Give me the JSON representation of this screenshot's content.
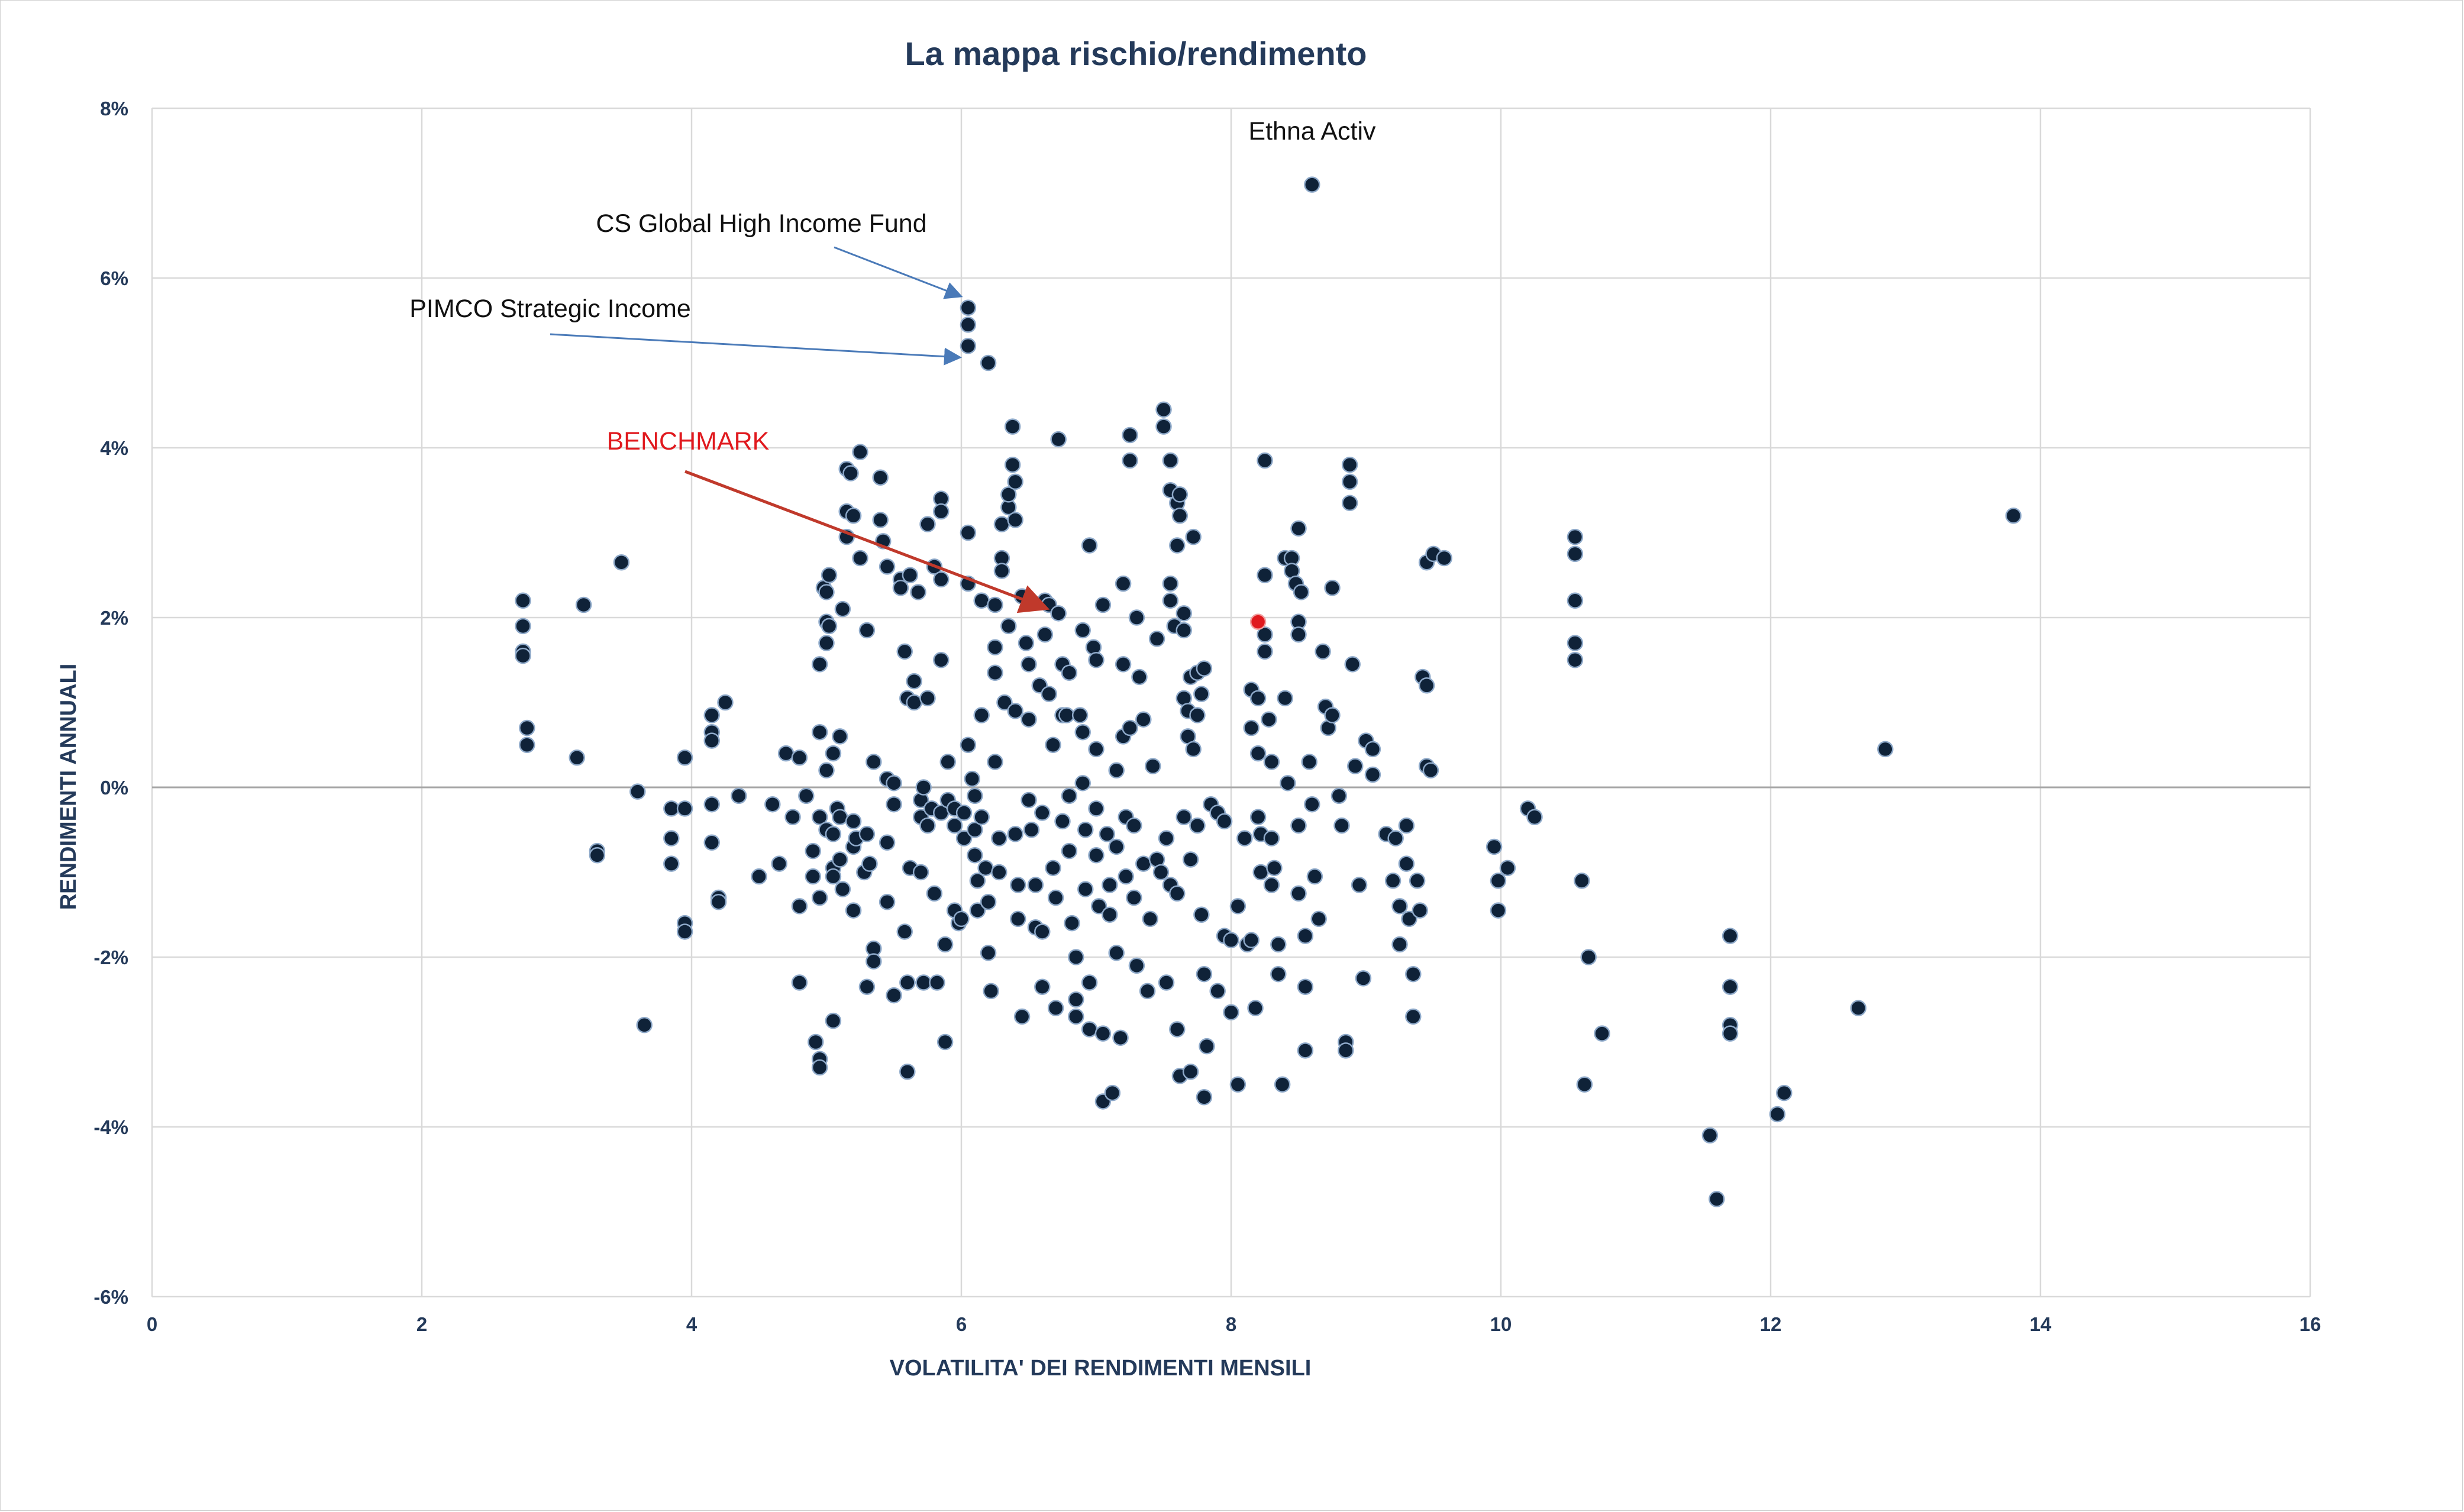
{
  "chart_data": {
    "type": "scatter",
    "title": "La mappa rischio/rendimento",
    "xlabel": "VOLATILITA' DEI RENDIMENTI MENSILI",
    "ylabel": "RENDIMENTI ANNUALI",
    "xlim": [
      0,
      16
    ],
    "ylim": [
      -6,
      8
    ],
    "x_ticks": [
      "0",
      "2",
      "4",
      "6",
      "8",
      "10",
      "12",
      "14",
      "16"
    ],
    "y_ticks": [
      "8%",
      "6%",
      "4%",
      "2%",
      "0%",
      "-2%",
      "-4%",
      "-6%"
    ],
    "grid": true,
    "colors": {
      "points": "#0f2238",
      "point_outline": "#8ea9c9",
      "benchmark": "#e0191e",
      "text": "#243a5a"
    },
    "benchmark": {
      "label": "BENCHMARK",
      "x": 8.2,
      "y": 1.95
    },
    "annotations": [
      {
        "label": "Ethna Activ",
        "x": 8.6,
        "y": 7.1
      },
      {
        "label": "CS Global High Income Fund",
        "x": 6.05,
        "y": 5.65
      },
      {
        "label": "PIMCO Strategic Income",
        "x": 6.05,
        "y": 5.0
      }
    ],
    "points": [
      [
        2.75,
        2.2
      ],
      [
        2.75,
        1.9
      ],
      [
        2.75,
        1.6
      ],
      [
        2.75,
        1.55
      ],
      [
        2.78,
        0.7
      ],
      [
        2.78,
        0.5
      ],
      [
        3.15,
        0.35
      ],
      [
        3.2,
        2.15
      ],
      [
        3.3,
        -0.75
      ],
      [
        3.3,
        -0.8
      ],
      [
        3.48,
        2.65
      ],
      [
        3.6,
        -0.05
      ],
      [
        3.65,
        -2.8
      ],
      [
        3.85,
        -0.25
      ],
      [
        3.85,
        -0.6
      ],
      [
        3.85,
        -0.9
      ],
      [
        3.95,
        0.35
      ],
      [
        3.95,
        -0.25
      ],
      [
        3.95,
        -1.6
      ],
      [
        3.95,
        -1.7
      ],
      [
        4.15,
        0.85
      ],
      [
        4.15,
        0.65
      ],
      [
        4.15,
        0.55
      ],
      [
        4.15,
        -0.2
      ],
      [
        4.15,
        -0.65
      ],
      [
        4.2,
        -1.3
      ],
      [
        4.2,
        -1.35
      ],
      [
        4.25,
        1.0
      ],
      [
        4.35,
        -0.1
      ],
      [
        4.5,
        -1.05
      ],
      [
        4.6,
        -0.2
      ],
      [
        4.65,
        -0.9
      ],
      [
        4.7,
        0.4
      ],
      [
        4.75,
        -0.35
      ],
      [
        4.8,
        0.35
      ],
      [
        4.8,
        -1.4
      ],
      [
        4.8,
        -2.3
      ],
      [
        4.85,
        -0.1
      ],
      [
        4.9,
        -0.75
      ],
      [
        4.9,
        -1.05
      ],
      [
        4.92,
        -3.0
      ],
      [
        4.95,
        -3.2
      ],
      [
        4.95,
        0.65
      ],
      [
        4.95,
        -0.35
      ],
      [
        4.95,
        -1.3
      ],
      [
        4.95,
        1.45
      ],
      [
        4.95,
        -3.3
      ],
      [
        4.98,
        2.35
      ],
      [
        5.0,
        2.3
      ],
      [
        5.0,
        1.95
      ],
      [
        5.0,
        1.7
      ],
      [
        5.0,
        0.2
      ],
      [
        5.0,
        -0.5
      ],
      [
        5.02,
        2.5
      ],
      [
        5.02,
        1.9
      ],
      [
        5.05,
        0.4
      ],
      [
        5.05,
        -0.55
      ],
      [
        5.05,
        -0.95
      ],
      [
        5.05,
        -1.05
      ],
      [
        5.05,
        -2.75
      ],
      [
        5.08,
        -0.25
      ],
      [
        5.1,
        0.6
      ],
      [
        5.1,
        -0.35
      ],
      [
        5.1,
        -0.85
      ],
      [
        5.12,
        -1.2
      ],
      [
        5.12,
        2.1
      ],
      [
        5.15,
        3.25
      ],
      [
        5.15,
        3.75
      ],
      [
        5.15,
        2.95
      ],
      [
        5.18,
        3.7
      ],
      [
        5.2,
        3.2
      ],
      [
        5.2,
        -0.4
      ],
      [
        5.2,
        -0.7
      ],
      [
        5.2,
        -1.45
      ],
      [
        5.22,
        -0.6
      ],
      [
        5.25,
        3.95
      ],
      [
        5.25,
        2.7
      ],
      [
        5.28,
        -1.0
      ],
      [
        5.3,
        1.85
      ],
      [
        5.3,
        -0.55
      ],
      [
        5.3,
        -2.35
      ],
      [
        5.32,
        -0.9
      ],
      [
        5.35,
        0.3
      ],
      [
        5.35,
        -1.9
      ],
      [
        5.35,
        -2.05
      ],
      [
        5.4,
        3.15
      ],
      [
        5.4,
        3.65
      ],
      [
        5.42,
        2.9
      ],
      [
        5.45,
        2.6
      ],
      [
        5.45,
        0.1
      ],
      [
        5.45,
        -0.65
      ],
      [
        5.45,
        -1.35
      ],
      [
        5.5,
        -2.45
      ],
      [
        5.5,
        0.05
      ],
      [
        5.5,
        -0.2
      ],
      [
        5.55,
        2.45
      ],
      [
        5.55,
        2.35
      ],
      [
        5.58,
        1.6
      ],
      [
        5.58,
        -1.7
      ],
      [
        5.6,
        -3.35
      ],
      [
        5.6,
        -2.3
      ],
      [
        5.6,
        1.05
      ],
      [
        5.62,
        2.5
      ],
      [
        5.62,
        -0.95
      ],
      [
        5.65,
        1.25
      ],
      [
        5.65,
        1.0
      ],
      [
        5.68,
        2.3
      ],
      [
        5.7,
        -0.35
      ],
      [
        5.7,
        -0.15
      ],
      [
        5.7,
        -1.0
      ],
      [
        5.72,
        0.0
      ],
      [
        5.72,
        -2.3
      ],
      [
        5.75,
        -0.45
      ],
      [
        5.75,
        3.1
      ],
      [
        5.75,
        1.05
      ],
      [
        5.78,
        -0.25
      ],
      [
        5.8,
        2.6
      ],
      [
        5.8,
        -1.25
      ],
      [
        5.82,
        -2.3
      ],
      [
        5.85,
        3.4
      ],
      [
        5.85,
        3.25
      ],
      [
        5.85,
        2.45
      ],
      [
        5.85,
        1.5
      ],
      [
        5.85,
        -0.3
      ],
      [
        5.88,
        -1.85
      ],
      [
        5.88,
        -3.0
      ],
      [
        5.9,
        0.3
      ],
      [
        5.9,
        -0.15
      ],
      [
        5.95,
        -0.25
      ],
      [
        5.95,
        -0.45
      ],
      [
        5.95,
        -1.45
      ],
      [
        5.98,
        -1.6
      ],
      [
        6.0,
        -1.55
      ],
      [
        6.02,
        -0.3
      ],
      [
        6.02,
        -0.6
      ],
      [
        6.05,
        5.65
      ],
      [
        6.05,
        5.45
      ],
      [
        6.05,
        5.2
      ],
      [
        6.05,
        3.0
      ],
      [
        6.05,
        2.4
      ],
      [
        6.05,
        0.5
      ],
      [
        6.08,
        0.1
      ],
      [
        6.1,
        -0.1
      ],
      [
        6.1,
        -0.5
      ],
      [
        6.1,
        -0.8
      ],
      [
        6.12,
        -1.1
      ],
      [
        6.12,
        -1.45
      ],
      [
        6.15,
        2.2
      ],
      [
        6.15,
        0.85
      ],
      [
        6.15,
        -0.35
      ],
      [
        6.18,
        -0.95
      ],
      [
        6.2,
        5.0
      ],
      [
        6.2,
        -1.35
      ],
      [
        6.2,
        -1.95
      ],
      [
        6.22,
        -2.4
      ],
      [
        6.25,
        2.15
      ],
      [
        6.25,
        1.65
      ],
      [
        6.25,
        1.35
      ],
      [
        6.25,
        0.3
      ],
      [
        6.28,
        -0.6
      ],
      [
        6.28,
        -1.0
      ],
      [
        6.3,
        3.1
      ],
      [
        6.3,
        2.7
      ],
      [
        6.3,
        2.55
      ],
      [
        6.32,
        1.0
      ],
      [
        6.35,
        1.9
      ],
      [
        6.35,
        3.3
      ],
      [
        6.35,
        3.45
      ],
      [
        6.38,
        3.8
      ],
      [
        6.38,
        4.25
      ],
      [
        6.4,
        3.6
      ],
      [
        6.4,
        3.15
      ],
      [
        6.4,
        0.9
      ],
      [
        6.4,
        -0.55
      ],
      [
        6.42,
        -1.15
      ],
      [
        6.42,
        -1.55
      ],
      [
        6.45,
        -2.7
      ],
      [
        6.45,
        2.25
      ],
      [
        6.48,
        1.7
      ],
      [
        6.5,
        1.45
      ],
      [
        6.5,
        0.8
      ],
      [
        6.5,
        -0.15
      ],
      [
        6.52,
        -0.5
      ],
      [
        6.55,
        -1.15
      ],
      [
        6.55,
        -1.65
      ],
      [
        6.58,
        1.2
      ],
      [
        6.6,
        -0.3
      ],
      [
        6.6,
        -1.7
      ],
      [
        6.6,
        -2.35
      ],
      [
        6.62,
        1.8
      ],
      [
        6.62,
        2.2
      ],
      [
        6.65,
        2.15
      ],
      [
        6.65,
        1.1
      ],
      [
        6.68,
        0.5
      ],
      [
        6.68,
        -0.95
      ],
      [
        6.7,
        -1.3
      ],
      [
        6.7,
        -2.6
      ],
      [
        6.72,
        4.1
      ],
      [
        6.72,
        2.05
      ],
      [
        6.75,
        1.45
      ],
      [
        6.75,
        0.85
      ],
      [
        6.75,
        -0.4
      ],
      [
        6.78,
        0.85
      ],
      [
        6.8,
        1.35
      ],
      [
        6.8,
        -0.1
      ],
      [
        6.8,
        -0.75
      ],
      [
        6.82,
        -1.6
      ],
      [
        6.85,
        -2.0
      ],
      [
        6.85,
        -2.5
      ],
      [
        6.85,
        -2.7
      ],
      [
        6.88,
        0.85
      ],
      [
        6.9,
        1.85
      ],
      [
        6.9,
        0.65
      ],
      [
        6.9,
        0.05
      ],
      [
        6.92,
        -0.5
      ],
      [
        6.92,
        -1.2
      ],
      [
        6.95,
        -2.3
      ],
      [
        6.95,
        -2.85
      ],
      [
        6.95,
        2.85
      ],
      [
        6.98,
        1.65
      ],
      [
        7.0,
        1.5
      ],
      [
        7.0,
        0.45
      ],
      [
        7.0,
        -0.25
      ],
      [
        7.0,
        -0.8
      ],
      [
        7.02,
        -1.4
      ],
      [
        7.05,
        -2.9
      ],
      [
        7.05,
        -3.7
      ],
      [
        7.05,
        2.15
      ],
      [
        7.08,
        -0.55
      ],
      [
        7.1,
        -1.15
      ],
      [
        7.1,
        -1.5
      ],
      [
        7.12,
        -3.6
      ],
      [
        7.15,
        0.2
      ],
      [
        7.15,
        -0.7
      ],
      [
        7.15,
        -1.95
      ],
      [
        7.18,
        -2.95
      ],
      [
        7.2,
        2.4
      ],
      [
        7.2,
        1.45
      ],
      [
        7.2,
        0.6
      ],
      [
        7.22,
        -0.35
      ],
      [
        7.22,
        -1.05
      ],
      [
        7.25,
        3.85
      ],
      [
        7.25,
        4.15
      ],
      [
        7.25,
        0.7
      ],
      [
        7.28,
        -0.45
      ],
      [
        7.28,
        -1.3
      ],
      [
        7.3,
        -2.1
      ],
      [
        7.3,
        2.0
      ],
      [
        7.32,
        1.3
      ],
      [
        7.35,
        0.8
      ],
      [
        7.35,
        -0.9
      ],
      [
        7.38,
        -2.4
      ],
      [
        7.4,
        -1.55
      ],
      [
        7.42,
        0.25
      ],
      [
        7.45,
        1.75
      ],
      [
        7.45,
        -0.85
      ],
      [
        7.48,
        -1.0
      ],
      [
        7.5,
        4.45
      ],
      [
        7.5,
        4.25
      ],
      [
        7.52,
        -0.6
      ],
      [
        7.52,
        -2.3
      ],
      [
        7.55,
        3.85
      ],
      [
        7.55,
        3.5
      ],
      [
        7.55,
        2.4
      ],
      [
        7.55,
        2.2
      ],
      [
        7.55,
        -1.15
      ],
      [
        7.58,
        1.9
      ],
      [
        7.6,
        3.35
      ],
      [
        7.6,
        2.85
      ],
      [
        7.6,
        -1.25
      ],
      [
        7.6,
        -2.85
      ],
      [
        7.62,
        3.2
      ],
      [
        7.62,
        3.45
      ],
      [
        7.62,
        -3.4
      ],
      [
        7.65,
        2.05
      ],
      [
        7.65,
        1.85
      ],
      [
        7.65,
        1.05
      ],
      [
        7.65,
        -0.35
      ],
      [
        7.68,
        0.9
      ],
      [
        7.68,
        0.6
      ],
      [
        7.7,
        1.3
      ],
      [
        7.7,
        -0.85
      ],
      [
        7.7,
        -3.35
      ],
      [
        7.72,
        2.95
      ],
      [
        7.72,
        0.45
      ],
      [
        7.75,
        1.35
      ],
      [
        7.75,
        0.85
      ],
      [
        7.75,
        -0.45
      ],
      [
        7.78,
        1.1
      ],
      [
        7.78,
        -1.5
      ],
      [
        7.8,
        1.4
      ],
      [
        7.8,
        -2.2
      ],
      [
        7.8,
        -3.65
      ],
      [
        7.82,
        -3.05
      ],
      [
        7.85,
        -0.2
      ],
      [
        7.9,
        -0.3
      ],
      [
        7.9,
        -2.4
      ],
      [
        7.95,
        -0.4
      ],
      [
        7.95,
        -1.75
      ],
      [
        8.0,
        -1.8
      ],
      [
        8.0,
        -2.65
      ],
      [
        8.05,
        -1.4
      ],
      [
        8.05,
        -3.5
      ],
      [
        8.1,
        -0.6
      ],
      [
        8.12,
        -1.85
      ],
      [
        8.15,
        1.15
      ],
      [
        8.15,
        0.7
      ],
      [
        8.15,
        -1.8
      ],
      [
        8.18,
        -2.6
      ],
      [
        8.2,
        1.05
      ],
      [
        8.2,
        0.4
      ],
      [
        8.2,
        -0.35
      ],
      [
        8.22,
        -0.55
      ],
      [
        8.22,
        -1.0
      ],
      [
        8.25,
        3.85
      ],
      [
        8.25,
        2.5
      ],
      [
        8.25,
        1.6
      ],
      [
        8.25,
        1.8
      ],
      [
        8.28,
        0.8
      ],
      [
        8.3,
        0.3
      ],
      [
        8.3,
        -0.6
      ],
      [
        8.3,
        -1.15
      ],
      [
        8.32,
        -0.95
      ],
      [
        8.35,
        -1.85
      ],
      [
        8.35,
        -2.2
      ],
      [
        8.38,
        -3.5
      ],
      [
        8.4,
        2.7
      ],
      [
        8.4,
        1.05
      ],
      [
        8.42,
        0.05
      ],
      [
        8.45,
        2.7
      ],
      [
        8.45,
        2.55
      ],
      [
        8.48,
        2.4
      ],
      [
        8.5,
        3.05
      ],
      [
        8.5,
        1.95
      ],
      [
        8.5,
        1.8
      ],
      [
        8.5,
        -0.45
      ],
      [
        8.5,
        -1.25
      ],
      [
        8.52,
        2.3
      ],
      [
        8.55,
        -1.75
      ],
      [
        8.55,
        -2.35
      ],
      [
        8.55,
        -3.1
      ],
      [
        8.58,
        0.3
      ],
      [
        8.6,
        7.1
      ],
      [
        8.6,
        -0.2
      ],
      [
        8.62,
        -1.05
      ],
      [
        8.65,
        -1.55
      ],
      [
        8.68,
        1.6
      ],
      [
        8.7,
        0.95
      ],
      [
        8.72,
        0.7
      ],
      [
        8.75,
        0.85
      ],
      [
        8.75,
        2.35
      ],
      [
        8.8,
        -0.1
      ],
      [
        8.82,
        -0.45
      ],
      [
        8.85,
        -3.0
      ],
      [
        8.85,
        -3.1
      ],
      [
        8.88,
        3.8
      ],
      [
        8.88,
        3.6
      ],
      [
        8.88,
        3.35
      ],
      [
        8.9,
        1.45
      ],
      [
        8.92,
        0.25
      ],
      [
        8.95,
        -1.15
      ],
      [
        8.98,
        -2.25
      ],
      [
        9.0,
        0.55
      ],
      [
        9.05,
        0.45
      ],
      [
        9.05,
        0.15
      ],
      [
        9.15,
        -0.55
      ],
      [
        9.2,
        -1.1
      ],
      [
        9.22,
        -0.6
      ],
      [
        9.25,
        -1.4
      ],
      [
        9.25,
        -1.85
      ],
      [
        9.3,
        -0.45
      ],
      [
        9.3,
        -0.9
      ],
      [
        9.32,
        -1.55
      ],
      [
        9.35,
        -2.7
      ],
      [
        9.35,
        -2.2
      ],
      [
        9.38,
        -1.1
      ],
      [
        9.4,
        -1.45
      ],
      [
        9.42,
        1.3
      ],
      [
        9.45,
        2.65
      ],
      [
        9.45,
        1.2
      ],
      [
        9.45,
        0.25
      ],
      [
        9.48,
        0.2
      ],
      [
        9.5,
        2.75
      ],
      [
        9.58,
        2.7
      ],
      [
        9.95,
        -0.7
      ],
      [
        9.98,
        -1.1
      ],
      [
        9.98,
        -1.45
      ],
      [
        10.05,
        -0.95
      ],
      [
        10.2,
        -0.25
      ],
      [
        10.25,
        -0.35
      ],
      [
        10.55,
        2.95
      ],
      [
        10.55,
        2.75
      ],
      [
        10.55,
        2.2
      ],
      [
        10.55,
        1.7
      ],
      [
        10.55,
        1.5
      ],
      [
        10.6,
        -1.1
      ],
      [
        10.62,
        -3.5
      ],
      [
        10.65,
        -2.0
      ],
      [
        10.75,
        -2.9
      ],
      [
        11.55,
        -4.1
      ],
      [
        11.6,
        -4.85
      ],
      [
        11.7,
        -1.75
      ],
      [
        11.7,
        -2.35
      ],
      [
        11.7,
        -2.8
      ],
      [
        11.7,
        -2.9
      ],
      [
        12.05,
        -3.85
      ],
      [
        12.1,
        -3.6
      ],
      [
        12.65,
        -2.6
      ],
      [
        12.85,
        0.45
      ],
      [
        13.8,
        3.2
      ]
    ]
  }
}
